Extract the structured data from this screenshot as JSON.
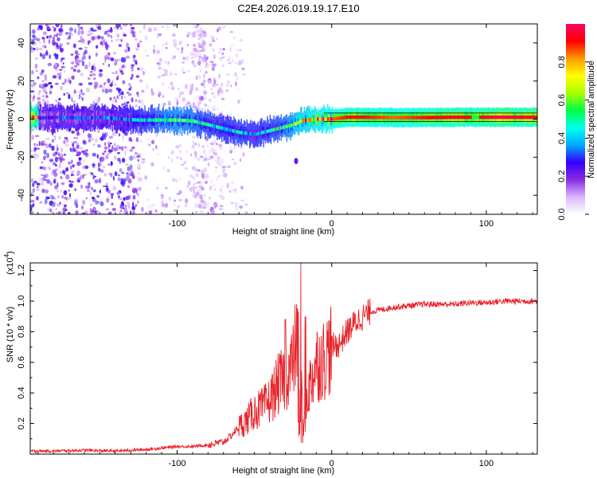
{
  "title": "C2E4.2026.019.19.17.E10",
  "chart_data": [
    {
      "type": "heatmap",
      "name": "spectrogram",
      "xlabel": "Height of straight line (km)",
      "ylabel": "Frequency (Hz)",
      "xlim": [
        -195,
        133
      ],
      "ylim": [
        -50,
        50
      ],
      "xticks": [
        -100,
        0,
        100
      ],
      "yticks": [
        -40,
        -20,
        0,
        20,
        40
      ],
      "colorbar": {
        "label": "Normalized spectral amplitude",
        "range": [
          0,
          1
        ],
        "ticks": [
          "0.0",
          "0.2",
          "0.4",
          "0.6",
          "0.8"
        ],
        "tick_values": [
          0.0,
          0.2,
          0.4,
          0.6,
          0.8
        ],
        "colors": [
          "#ffffff",
          "#d8b8ff",
          "#8a2be2",
          "#3300ff",
          "#00aaff",
          "#00ffee",
          "#00ff44",
          "#aaff00",
          "#ffff00",
          "#ff9900",
          "#ff0000",
          "#ff0066"
        ]
      },
      "ridge": {
        "x": [
          -190,
          -175,
          -160,
          -150,
          -135,
          -125,
          -110,
          -100,
          -90,
          -80,
          -70,
          -60,
          -50,
          -40,
          -30,
          -25,
          -20,
          -10,
          0,
          10,
          20,
          40,
          60,
          80,
          90,
          100,
          110,
          120,
          133
        ],
        "y": [
          0.5,
          1,
          0.5,
          1,
          0,
          -0.5,
          -0.5,
          -0.5,
          -1,
          -3,
          -5,
          -7,
          -8,
          -6,
          -4,
          -3,
          -1,
          0,
          0,
          1,
          1,
          0.8,
          0.8,
          1,
          1,
          1,
          1,
          1,
          1
        ],
        "amplitude": [
          0.25,
          0.3,
          0.3,
          0.3,
          0.35,
          0.4,
          0.5,
          0.55,
          0.5,
          0.45,
          0.4,
          0.45,
          0.4,
          0.45,
          0.5,
          0.6,
          0.7,
          0.8,
          0.85,
          0.9,
          0.9,
          0.85,
          0.9,
          0.95,
          0.9,
          0.95,
          1.0,
          0.95,
          0.95
        ]
      }
    },
    {
      "type": "line",
      "name": "snr",
      "xlabel": "Height of straight line (km)",
      "ylabel": "SNR (10 * v/v)",
      "y_multiplier": "(x10",
      "y_multiplier_exp": "4",
      "y_multiplier_close": ")",
      "xlim": [
        -195,
        133
      ],
      "ylim": [
        0,
        1.25
      ],
      "xticks": [
        -100,
        0,
        100
      ],
      "yticks": [
        0.2,
        0.4,
        0.6,
        0.8,
        1.0,
        1.2
      ],
      "ytick_labels": [
        "0.2",
        "0.4",
        "0.6",
        "0.8",
        "1.0",
        "1.2"
      ],
      "series": [
        {
          "name": "SNR",
          "color": "#e8232a",
          "x": [
            -195,
            -180,
            -160,
            -140,
            -120,
            -110,
            -100,
            -90,
            -80,
            -75,
            -70,
            -65,
            -60,
            -55,
            -50,
            -45,
            -40,
            -35,
            -30,
            -25,
            -22,
            -20,
            -18,
            -15,
            -10,
            -5,
            0,
            5,
            10,
            15,
            20,
            25,
            30,
            35,
            40,
            50,
            60,
            70,
            80,
            90,
            100,
            110,
            120,
            133
          ],
          "y": [
            0.02,
            0.02,
            0.025,
            0.02,
            0.03,
            0.04,
            0.05,
            0.05,
            0.06,
            0.07,
            0.08,
            0.12,
            0.18,
            0.22,
            0.28,
            0.3,
            0.35,
            0.45,
            0.5,
            0.6,
            0.8,
            0.55,
            0.3,
            0.42,
            0.6,
            0.62,
            0.7,
            0.72,
            0.8,
            0.86,
            0.9,
            0.93,
            0.94,
            0.95,
            0.96,
            0.97,
            0.98,
            0.98,
            0.98,
            0.99,
            0.99,
            1.0,
            1.0,
            1.0
          ]
        }
      ],
      "spikes": [
        {
          "x": -20,
          "y": 1.25
        },
        {
          "x": -22,
          "y": 0.95
        },
        {
          "x": -30,
          "y": 0.88
        },
        {
          "x": -17,
          "y": 0.9
        }
      ]
    }
  ]
}
